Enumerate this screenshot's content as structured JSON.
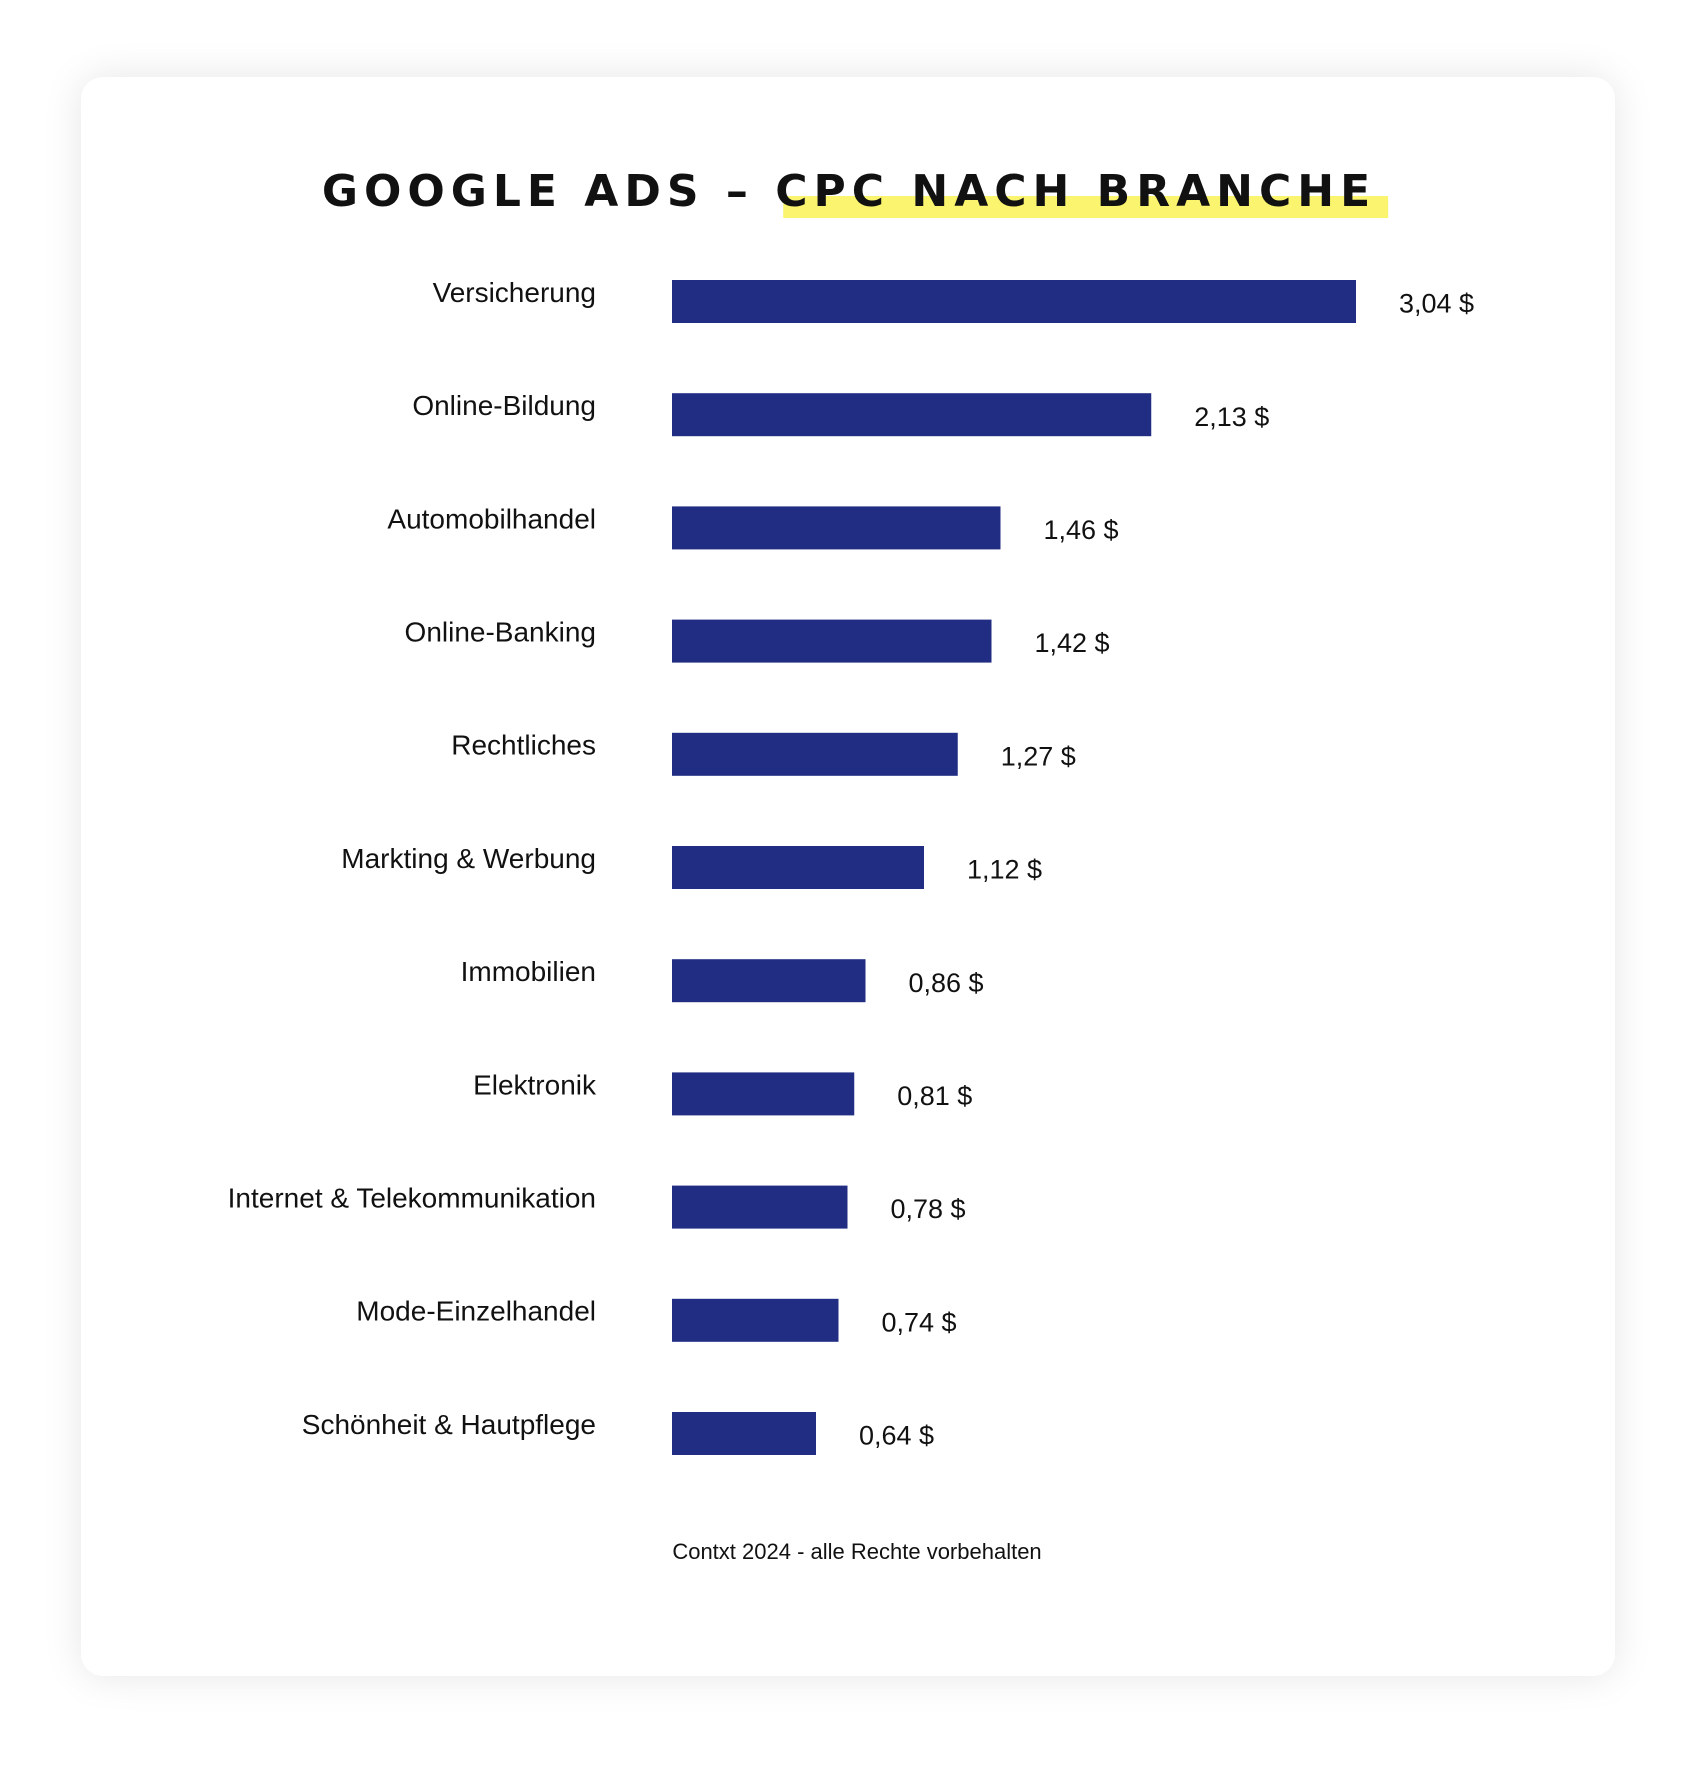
{
  "chart_data": {
    "type": "bar",
    "orientation": "horizontal",
    "title": "GOOGLE ADS –",
    "title_highlight": "CPC NACH BRANCHE",
    "highlight_color": "#fbf46e",
    "categories": [
      "Versicherung",
      "Online-Bildung",
      "Automobilhandel",
      "Online-Banking",
      "Rechtliches",
      "Markting & Werbung",
      "Immobilien",
      "Elektronik",
      "Internet & Telekommunikation",
      "Mode-Einzelhandel",
      "Schönheit & Hautpflege"
    ],
    "values": [
      3.04,
      2.13,
      1.46,
      1.42,
      1.27,
      1.12,
      0.86,
      0.81,
      0.78,
      0.74,
      0.64
    ],
    "value_labels": [
      "3,04 $",
      "2,13 $",
      "1,46 $",
      "1,42 $",
      "1,27 $",
      "1,12 $",
      "0,86  $",
      "0,81 $",
      "0,78 $",
      "0,74 $",
      "0,64 $"
    ],
    "color": "#212d82",
    "footer": "Contxt 2024 - alle Rechte vorbehalten"
  }
}
